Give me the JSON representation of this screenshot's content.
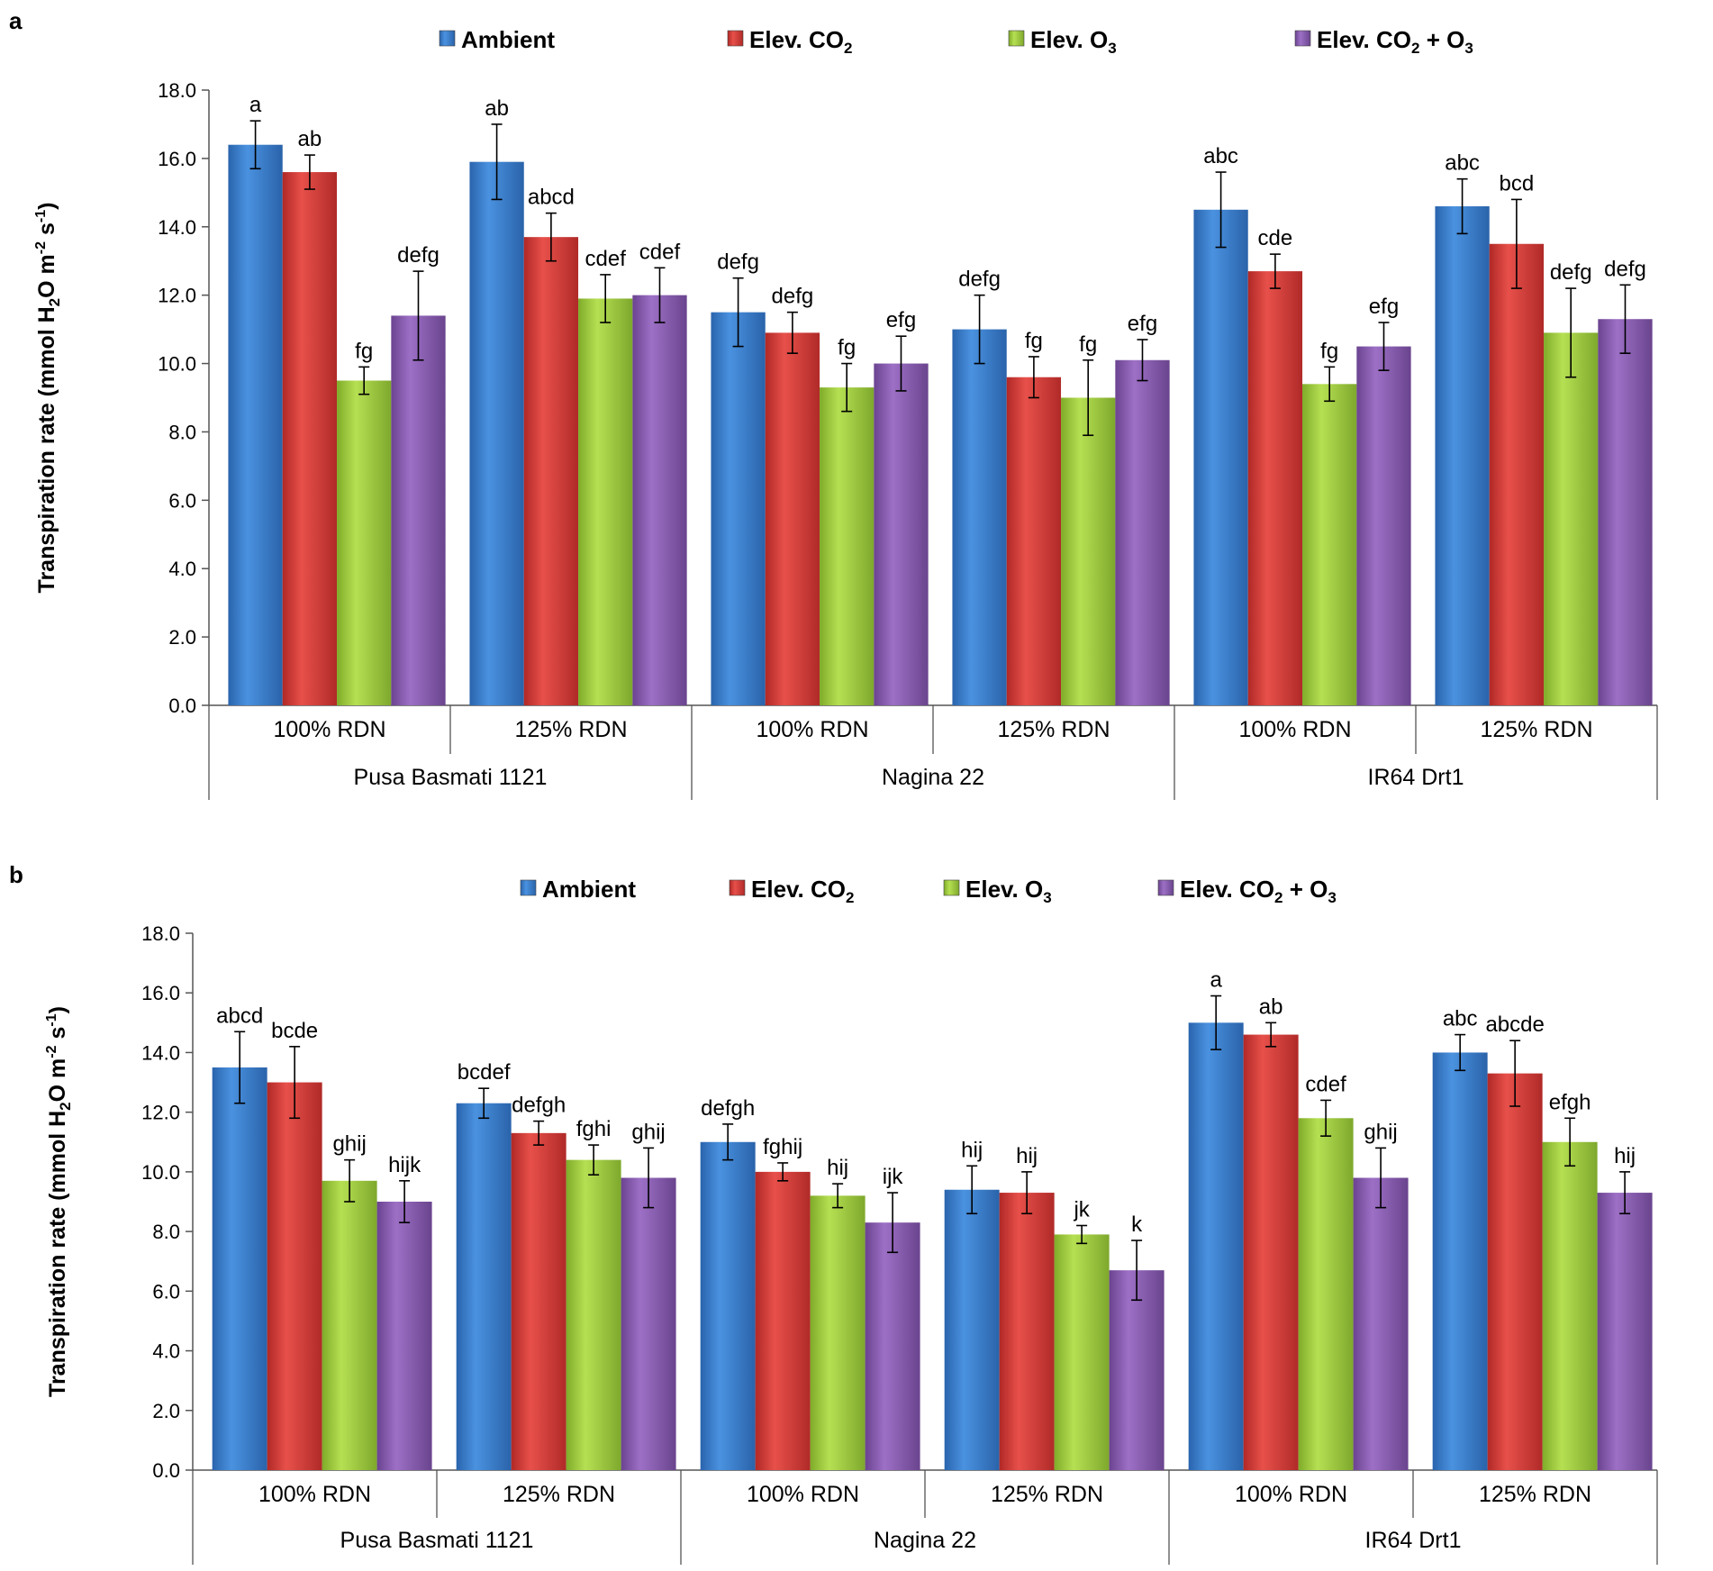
{
  "figure": {
    "panel_labels": [
      "a",
      "b"
    ],
    "legend": [
      {
        "label": "Ambient",
        "color": "#3a7fd0"
      },
      {
        "label": "Elev. CO",
        "sub": "2",
        "after": "",
        "color": "#d93a35"
      },
      {
        "label": "Elev. O",
        "sub": "3",
        "after": "",
        "color": "#9ccb3b"
      },
      {
        "label": "Elev. CO",
        "sub": "2",
        "after": " + O",
        "sub2": "3",
        "color": "#8a5bb3"
      }
    ],
    "ylabel": {
      "pre": "Transpiration rate (mmol H",
      "sub": "2",
      "mid": "O m",
      "sup1": "-2",
      "mid2": " s",
      "sup2": "-1",
      "post": ")"
    }
  },
  "chart_data": [
    {
      "type": "bar",
      "panel": "a",
      "ylim": [
        0,
        18
      ],
      "yticks": [
        "0.0",
        "2.0",
        "4.0",
        "6.0",
        "8.0",
        "10.0",
        "12.0",
        "14.0",
        "16.0",
        "18.0"
      ],
      "categories": [
        "100% RDN",
        "125% RDN",
        "100% RDN",
        "125% RDN",
        "100% RDN",
        "125% RDN"
      ],
      "groups": [
        "Pusa Basmati 1121",
        "Nagina 22",
        "IR64 Drt1"
      ],
      "series": [
        {
          "name": "Ambient",
          "values": [
            16.4,
            15.9,
            11.5,
            11.0,
            14.5,
            14.6
          ],
          "errors": [
            0.7,
            1.1,
            1.0,
            1.0,
            1.1,
            0.8
          ],
          "letters": [
            "a",
            "ab",
            "defg",
            "defg",
            "abc",
            "abc"
          ]
        },
        {
          "name": "Elev. CO2",
          "values": [
            15.6,
            13.7,
            10.9,
            9.6,
            12.7,
            13.5
          ],
          "errors": [
            0.5,
            0.7,
            0.6,
            0.6,
            0.5,
            1.3
          ],
          "letters": [
            "ab",
            "abcd",
            "defg",
            "fg",
            "cde",
            "bcd"
          ]
        },
        {
          "name": "Elev. O3",
          "values": [
            9.5,
            11.9,
            9.3,
            9.0,
            9.4,
            10.9
          ],
          "errors": [
            0.4,
            0.7,
            0.7,
            1.1,
            0.5,
            1.3
          ],
          "letters": [
            "fg",
            "cdef",
            "fg",
            "fg",
            "fg",
            "defg"
          ]
        },
        {
          "name": "Elev. CO2 + O3",
          "values": [
            11.4,
            12.0,
            10.0,
            10.1,
            10.5,
            11.3
          ],
          "errors": [
            1.3,
            0.8,
            0.8,
            0.6,
            0.7,
            1.0
          ],
          "letters": [
            "defg",
            "cdef",
            "efg",
            "efg",
            "efg",
            "defg"
          ]
        }
      ]
    },
    {
      "type": "bar",
      "panel": "b",
      "ylim": [
        0,
        18
      ],
      "yticks": [
        "0.0",
        "2.0",
        "4.0",
        "6.0",
        "8.0",
        "10.0",
        "12.0",
        "14.0",
        "16.0",
        "18.0"
      ],
      "categories": [
        "100% RDN",
        "125% RDN",
        "100% RDN",
        "125% RDN",
        "100% RDN",
        "125% RDN"
      ],
      "groups": [
        "Pusa Basmati 1121",
        "Nagina 22",
        "IR64 Drt1"
      ],
      "series": [
        {
          "name": "Ambient",
          "values": [
            13.5,
            12.3,
            11.0,
            9.4,
            15.0,
            14.0
          ],
          "errors": [
            1.2,
            0.5,
            0.6,
            0.8,
            0.9,
            0.6
          ],
          "letters": [
            "abcd",
            "bcdef",
            "defgh",
            "hij",
            "a",
            "abc"
          ]
        },
        {
          "name": "Elev. CO2",
          "values": [
            13.0,
            11.3,
            10.0,
            9.3,
            14.6,
            13.3
          ],
          "errors": [
            1.2,
            0.4,
            0.3,
            0.7,
            0.4,
            1.1
          ],
          "letters": [
            "bcde",
            "defgh",
            "fghij",
            "hij",
            "ab",
            "abcde"
          ]
        },
        {
          "name": "Elev. O3",
          "values": [
            9.7,
            10.4,
            9.2,
            7.9,
            11.8,
            11.0
          ],
          "errors": [
            0.7,
            0.5,
            0.4,
            0.3,
            0.6,
            0.8
          ],
          "letters": [
            "ghij",
            "fghi",
            "hij",
            "jk",
            "cdef",
            "efgh"
          ]
        },
        {
          "name": "Elev. CO2 + O3",
          "values": [
            9.0,
            9.8,
            8.3,
            6.7,
            9.8,
            9.3
          ],
          "errors": [
            0.7,
            1.0,
            1.0,
            1.0,
            1.0,
            0.7
          ],
          "letters": [
            "hijk",
            "ghij",
            "ijk",
            "k",
            "ghij",
            "hij"
          ]
        }
      ]
    }
  ]
}
